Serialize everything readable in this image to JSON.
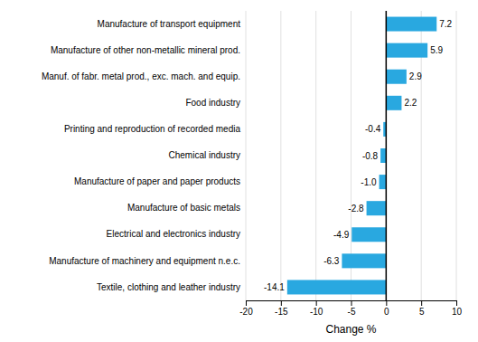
{
  "chart_data": {
    "type": "bar",
    "orientation": "horizontal",
    "categories": [
      "Textile, clothing and leather industry",
      "Manufacture of machinery and equipment n.e.c.",
      "Electrical and electronics industry",
      "Manufacture of basic metals",
      "Manufacture of paper and paper products",
      "Chemical industry",
      "Printing and reproduction of recorded media",
      "Food industry",
      "Manuf. of fabr. metal prod., exc. mach. and equip.",
      "Manufacture of other non-metallic mineral prod.",
      "Manufacture of transport equipment"
    ],
    "values": [
      -14.1,
      -6.3,
      -4.9,
      -2.8,
      -1.0,
      -0.8,
      -0.4,
      2.2,
      2.9,
      5.9,
      7.2
    ],
    "value_labels": [
      "-14.1",
      "-6.3",
      "-4.9",
      "-2.8",
      "-1.0",
      "-0.8",
      "-0.4",
      "2.2",
      "2.9",
      "5.9",
      "7.2"
    ],
    "color": "#29a8e0",
    "xlabel": "Change %",
    "xlim": [
      -20,
      10
    ],
    "xticks": [
      -20,
      -15,
      -10,
      -5,
      0,
      5,
      10
    ],
    "grid": true,
    "data_labels": true
  }
}
